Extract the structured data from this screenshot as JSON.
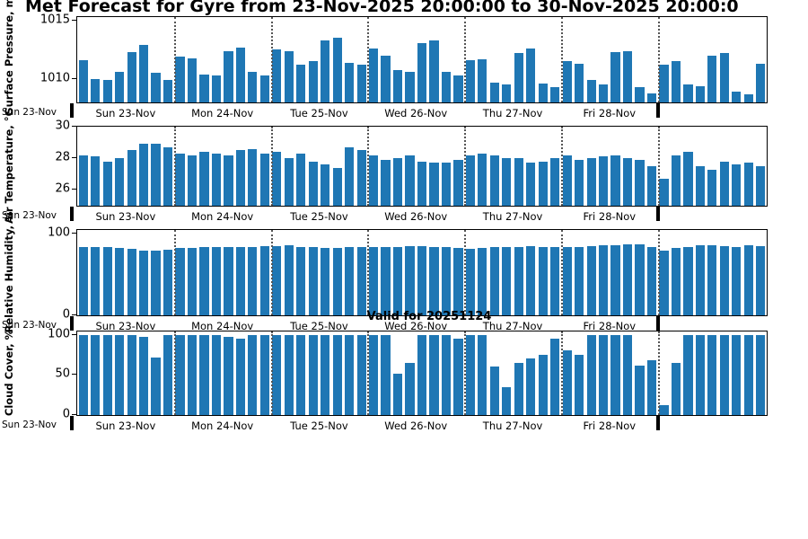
{
  "title": "Met Forecast for Gyre from 23-Nov-2025 20:00:00 to 30-Nov-2025 20:00:0",
  "annotation": "Valid for 20251124",
  "colors": {
    "bar": "#1f77b4",
    "axis": "#000000",
    "day_line": "#555555"
  },
  "x_axis": {
    "edge_label": "Sun 23-Nov",
    "day_labels": [
      "Sun 23-Nov",
      "Mon 24-Nov",
      "Tue 25-Nov",
      "Wed 26-Nov",
      "Thu 27-Nov",
      "Fri 28-Nov"
    ],
    "day_boundaries": [
      8,
      16,
      24,
      32,
      40,
      48
    ],
    "points_per_day": 8
  },
  "chart_data": [
    {
      "type": "bar",
      "ylabel": "Surface Pressure, mb",
      "yticks": [
        1010,
        1015
      ],
      "ylim": [
        1008,
        1015.3
      ],
      "grid": "dotted vertical day boundaries",
      "values": [
        1011.6,
        1010.0,
        1009.9,
        1010.6,
        1012.3,
        1012.9,
        1010.5,
        1009.9,
        1011.9,
        1011.8,
        1010.4,
        1010.3,
        1012.4,
        1012.7,
        1010.6,
        1010.3,
        1012.5,
        1012.4,
        1011.2,
        1011.5,
        1013.3,
        1013.5,
        1011.4,
        1011.2,
        1012.6,
        1012.0,
        1010.8,
        1010.6,
        1013.1,
        1013.3,
        1010.6,
        1010.3,
        1011.6,
        1011.7,
        1009.7,
        1009.5,
        1012.2,
        1012.6,
        1009.6,
        1009.3,
        1011.5,
        1011.3,
        1009.9,
        1009.5,
        1012.3,
        1012.4,
        1009.3,
        1008.8,
        1011.2,
        1011.5,
        1009.5,
        1009.4,
        1012.0,
        1012.2,
        1008.9,
        1008.7,
        1011.3
      ]
    },
    {
      "type": "bar",
      "ylabel": "Air Temperature, °C",
      "yticks": [
        26,
        28,
        30
      ],
      "ylim": [
        25,
        30
      ],
      "grid": "dotted vertical day boundaries",
      "values": [
        28.2,
        28.1,
        27.8,
        28.0,
        28.5,
        28.9,
        28.9,
        28.7,
        28.3,
        28.2,
        28.4,
        28.3,
        28.2,
        28.5,
        28.6,
        28.3,
        28.4,
        28.0,
        28.3,
        27.8,
        27.6,
        27.4,
        28.7,
        28.5,
        28.2,
        27.9,
        28.0,
        28.2,
        27.8,
        27.7,
        27.7,
        27.9,
        28.2,
        28.3,
        28.2,
        28.0,
        28.0,
        27.7,
        27.8,
        28.0,
        28.2,
        27.9,
        28.0,
        28.1,
        28.2,
        28.0,
        27.9,
        27.5,
        26.7,
        28.2,
        28.4,
        27.5,
        27.3,
        27.8,
        27.6,
        27.7,
        27.5
      ]
    },
    {
      "type": "bar",
      "ylabel": "Relative Humidity, %",
      "yticks": [
        0,
        100
      ],
      "ylim": [
        0,
        104
      ],
      "grid": "dotted vertical day boundaries",
      "values": [
        83,
        83,
        83,
        82,
        81,
        79,
        79,
        80,
        82,
        82,
        83,
        83,
        83,
        83,
        83,
        84,
        84,
        85,
        83,
        83,
        82,
        82,
        83,
        83,
        83,
        83,
        83,
        84,
        84,
        83,
        83,
        82,
        81,
        82,
        83,
        83,
        83,
        84,
        83,
        83,
        83,
        83,
        84,
        85,
        85,
        86,
        87,
        83,
        79,
        82,
        83,
        85,
        85,
        84,
        83,
        85,
        84
      ]
    },
    {
      "type": "bar",
      "ylabel": "Cloud Cover, %",
      "yticks": [
        0,
        50,
        100
      ],
      "ylim": [
        0,
        104
      ],
      "grid": "dotted vertical day boundaries",
      "values": [
        100,
        100,
        100,
        100,
        100,
        97,
        72,
        100,
        100,
        100,
        100,
        100,
        97,
        95,
        100,
        100,
        100,
        100,
        100,
        100,
        100,
        100,
        100,
        100,
        100,
        100,
        52,
        65,
        100,
        100,
        100,
        95,
        100,
        100,
        60,
        35,
        65,
        70,
        75,
        95,
        80,
        75,
        100,
        100,
        100,
        100,
        62,
        68,
        12,
        65,
        100,
        100,
        100,
        100,
        100,
        100,
        100
      ]
    }
  ]
}
